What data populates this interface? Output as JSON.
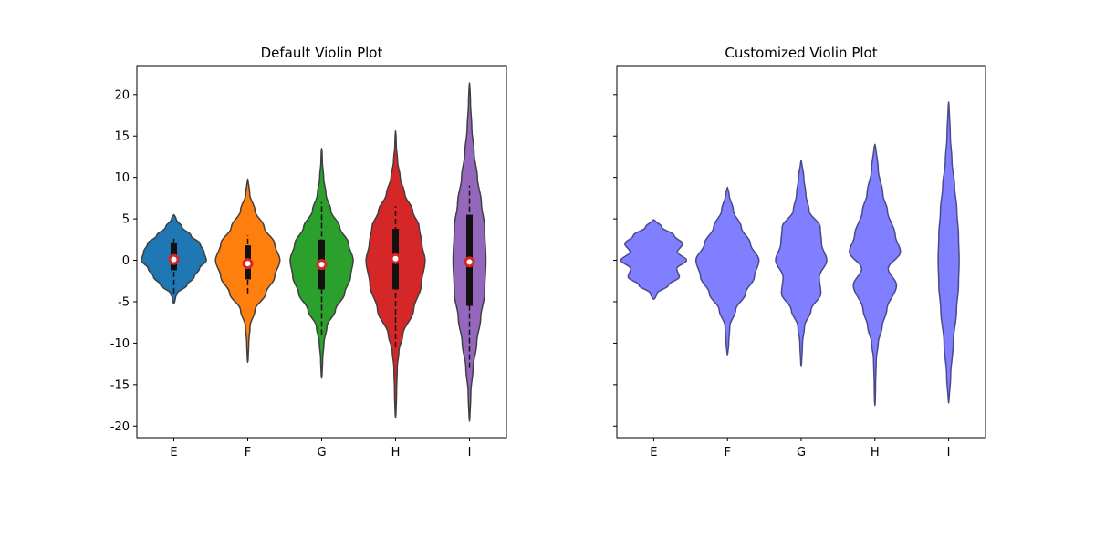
{
  "figure": {
    "background": "#ffffff"
  },
  "chart_data": [
    {
      "type": "violin",
      "title": "Default Violin Plot",
      "xlabel": "",
      "ylabel": "",
      "categories": [
        "E",
        "F",
        "G",
        "H",
        "I"
      ],
      "ylim": [
        -21.4,
        23.5
      ],
      "yticks": [
        -20,
        -15,
        -10,
        -5,
        0,
        5,
        10,
        15,
        20
      ],
      "show_inner_box": true,
      "median_marker_color": "#d62728",
      "series": [
        {
          "category": "E",
          "color": "#1f77b4",
          "min": -5.2,
          "max": 5.5,
          "q1": -1.2,
          "median": 0.1,
          "q3": 2.1,
          "whisker_low": -4.0,
          "whisker_high": 2.7,
          "density": [
            [
              -5.2,
              0.02
            ],
            [
              -4.5,
              0.05
            ],
            [
              -4.0,
              0.1
            ],
            [
              -3.0,
              0.4
            ],
            [
              -2.0,
              0.62
            ],
            [
              -1.0,
              0.78
            ],
            [
              0.0,
              0.99
            ],
            [
              1.0,
              0.92
            ],
            [
              2.0,
              0.8
            ],
            [
              3.0,
              0.52
            ],
            [
              4.0,
              0.25
            ],
            [
              5.0,
              0.07
            ],
            [
              5.5,
              0.02
            ]
          ]
        },
        {
          "category": "F",
          "color": "#ff7f0e",
          "min": -12.3,
          "max": 9.8,
          "q1": -2.3,
          "median": -0.4,
          "q3": 1.8,
          "whisker_low": -4.0,
          "whisker_high": 3.0,
          "density": [
            [
              -12.3,
              0.01
            ],
            [
              -10,
              0.03
            ],
            [
              -8,
              0.07
            ],
            [
              -6,
              0.22
            ],
            [
              -4,
              0.55
            ],
            [
              -2,
              0.82
            ],
            [
              0,
              0.98
            ],
            [
              2,
              0.82
            ],
            [
              4,
              0.5
            ],
            [
              6,
              0.22
            ],
            [
              8,
              0.06
            ],
            [
              9.8,
              0.01
            ]
          ]
        },
        {
          "category": "G",
          "color": "#2ca02c",
          "min": -14.2,
          "max": 13.5,
          "q1": -3.5,
          "median": -0.5,
          "q3": 2.5,
          "whisker_low": -9.0,
          "whisker_high": 7.0,
          "density": [
            [
              -14.2,
              0.01
            ],
            [
              -12,
              0.03
            ],
            [
              -10,
              0.07
            ],
            [
              -8,
              0.16
            ],
            [
              -6,
              0.42
            ],
            [
              -4,
              0.7
            ],
            [
              -2,
              0.88
            ],
            [
              0,
              0.96
            ],
            [
              2,
              0.82
            ],
            [
              4,
              0.55
            ],
            [
              6,
              0.28
            ],
            [
              8,
              0.13
            ],
            [
              10,
              0.06
            ],
            [
              12,
              0.02
            ],
            [
              13.5,
              0.01
            ]
          ]
        },
        {
          "category": "H",
          "color": "#d62728",
          "min": -19.0,
          "max": 15.6,
          "q1": -3.5,
          "median": 0.2,
          "q3": 3.8,
          "whisker_low": -10.5,
          "whisker_high": 6.5,
          "density": [
            [
              -19,
              0.01
            ],
            [
              -16,
              0.03
            ],
            [
              -13,
              0.05
            ],
            [
              -11,
              0.1
            ],
            [
              -9,
              0.22
            ],
            [
              -6,
              0.55
            ],
            [
              -3,
              0.78
            ],
            [
              0,
              0.9
            ],
            [
              2,
              0.8
            ],
            [
              4,
              0.72
            ],
            [
              6,
              0.52
            ],
            [
              8,
              0.28
            ],
            [
              10,
              0.14
            ],
            [
              12,
              0.06
            ],
            [
              14,
              0.02
            ],
            [
              15.6,
              0.01
            ]
          ]
        },
        {
          "category": "I",
          "color": "#9467bd",
          "min": -19.4,
          "max": 21.4,
          "q1": -5.5,
          "median": -0.2,
          "q3": 5.5,
          "whisker_low": -13.0,
          "whisker_high": 9.0,
          "density": [
            [
              -19.4,
              0.01
            ],
            [
              -16,
              0.04
            ],
            [
              -13,
              0.11
            ],
            [
              -10,
              0.22
            ],
            [
              -7,
              0.34
            ],
            [
              -4,
              0.46
            ],
            [
              0,
              0.5
            ],
            [
              4,
              0.46
            ],
            [
              7,
              0.36
            ],
            [
              10,
              0.24
            ],
            [
              13,
              0.14
            ],
            [
              16,
              0.07
            ],
            [
              19,
              0.03
            ],
            [
              21.4,
              0.01
            ]
          ]
        }
      ]
    },
    {
      "type": "violin",
      "title": "Customized Violin Plot",
      "xlabel": "",
      "ylabel": "",
      "categories": [
        "E",
        "F",
        "G",
        "H",
        "I"
      ],
      "ylim": [
        -21.4,
        23.5
      ],
      "yticks": [
        -20,
        -15,
        -10,
        -5,
        0,
        5,
        10,
        15,
        20
      ],
      "show_inner_box": false,
      "fill_color": "#7f7fff",
      "edge_color": "#4a4a8a",
      "series": [
        {
          "category": "E",
          "min": -4.7,
          "max": 4.9,
          "density": [
            [
              -4.7,
              0.03
            ],
            [
              -4.0,
              0.1
            ],
            [
              -3.0,
              0.45
            ],
            [
              -2.0,
              0.78
            ],
            [
              -1.0,
              0.7
            ],
            [
              0.0,
              1.0
            ],
            [
              1.0,
              0.72
            ],
            [
              2.0,
              0.88
            ],
            [
              3.0,
              0.62
            ],
            [
              4.0,
              0.25
            ],
            [
              4.9,
              0.03
            ]
          ]
        },
        {
          "category": "F",
          "min": -11.4,
          "max": 8.8,
          "split": true,
          "density": [
            [
              -11.4,
              0.01
            ],
            [
              -10,
              0.04
            ],
            [
              -8,
              0.07
            ],
            [
              -6,
              0.25
            ],
            [
              -4,
              0.55
            ],
            [
              -2,
              0.82
            ],
            [
              0,
              0.96
            ],
            [
              2,
              0.7
            ],
            [
              4,
              0.42
            ],
            [
              6,
              0.18
            ],
            [
              8,
              0.05
            ],
            [
              8.8,
              0.01
            ]
          ]
        },
        {
          "category": "G",
          "min": -12.8,
          "max": 12.1,
          "density": [
            [
              -12.8,
              0.01
            ],
            [
              -10,
              0.04
            ],
            [
              -8,
              0.1
            ],
            [
              -6,
              0.3
            ],
            [
              -4,
              0.6
            ],
            [
              -2,
              0.55
            ],
            [
              0,
              0.78
            ],
            [
              2,
              0.62
            ],
            [
              4,
              0.58
            ],
            [
              6,
              0.24
            ],
            [
              8,
              0.14
            ],
            [
              10,
              0.08
            ],
            [
              12.1,
              0.01
            ]
          ]
        },
        {
          "category": "H",
          "min": -17.5,
          "max": 14.0,
          "density": [
            [
              -17.5,
              0.01
            ],
            [
              -15,
              0.02
            ],
            [
              -12,
              0.04
            ],
            [
              -10,
              0.1
            ],
            [
              -8,
              0.22
            ],
            [
              -6,
              0.36
            ],
            [
              -3,
              0.66
            ],
            [
              -1,
              0.4
            ],
            [
              1,
              0.78
            ],
            [
              3,
              0.62
            ],
            [
              6,
              0.38
            ],
            [
              8,
              0.24
            ],
            [
              11,
              0.1
            ],
            [
              14,
              0.02
            ]
          ]
        },
        {
          "category": "I",
          "min": -17.2,
          "max": 19.1,
          "density": [
            [
              -17.2,
              0.01
            ],
            [
              -14,
              0.06
            ],
            [
              -10,
              0.14
            ],
            [
              -6,
              0.24
            ],
            [
              -3,
              0.3
            ],
            [
              0,
              0.32
            ],
            [
              3,
              0.3
            ],
            [
              6,
              0.25
            ],
            [
              9,
              0.18
            ],
            [
              12,
              0.1
            ],
            [
              15,
              0.05
            ],
            [
              19.1,
              0.01
            ]
          ]
        }
      ]
    }
  ]
}
